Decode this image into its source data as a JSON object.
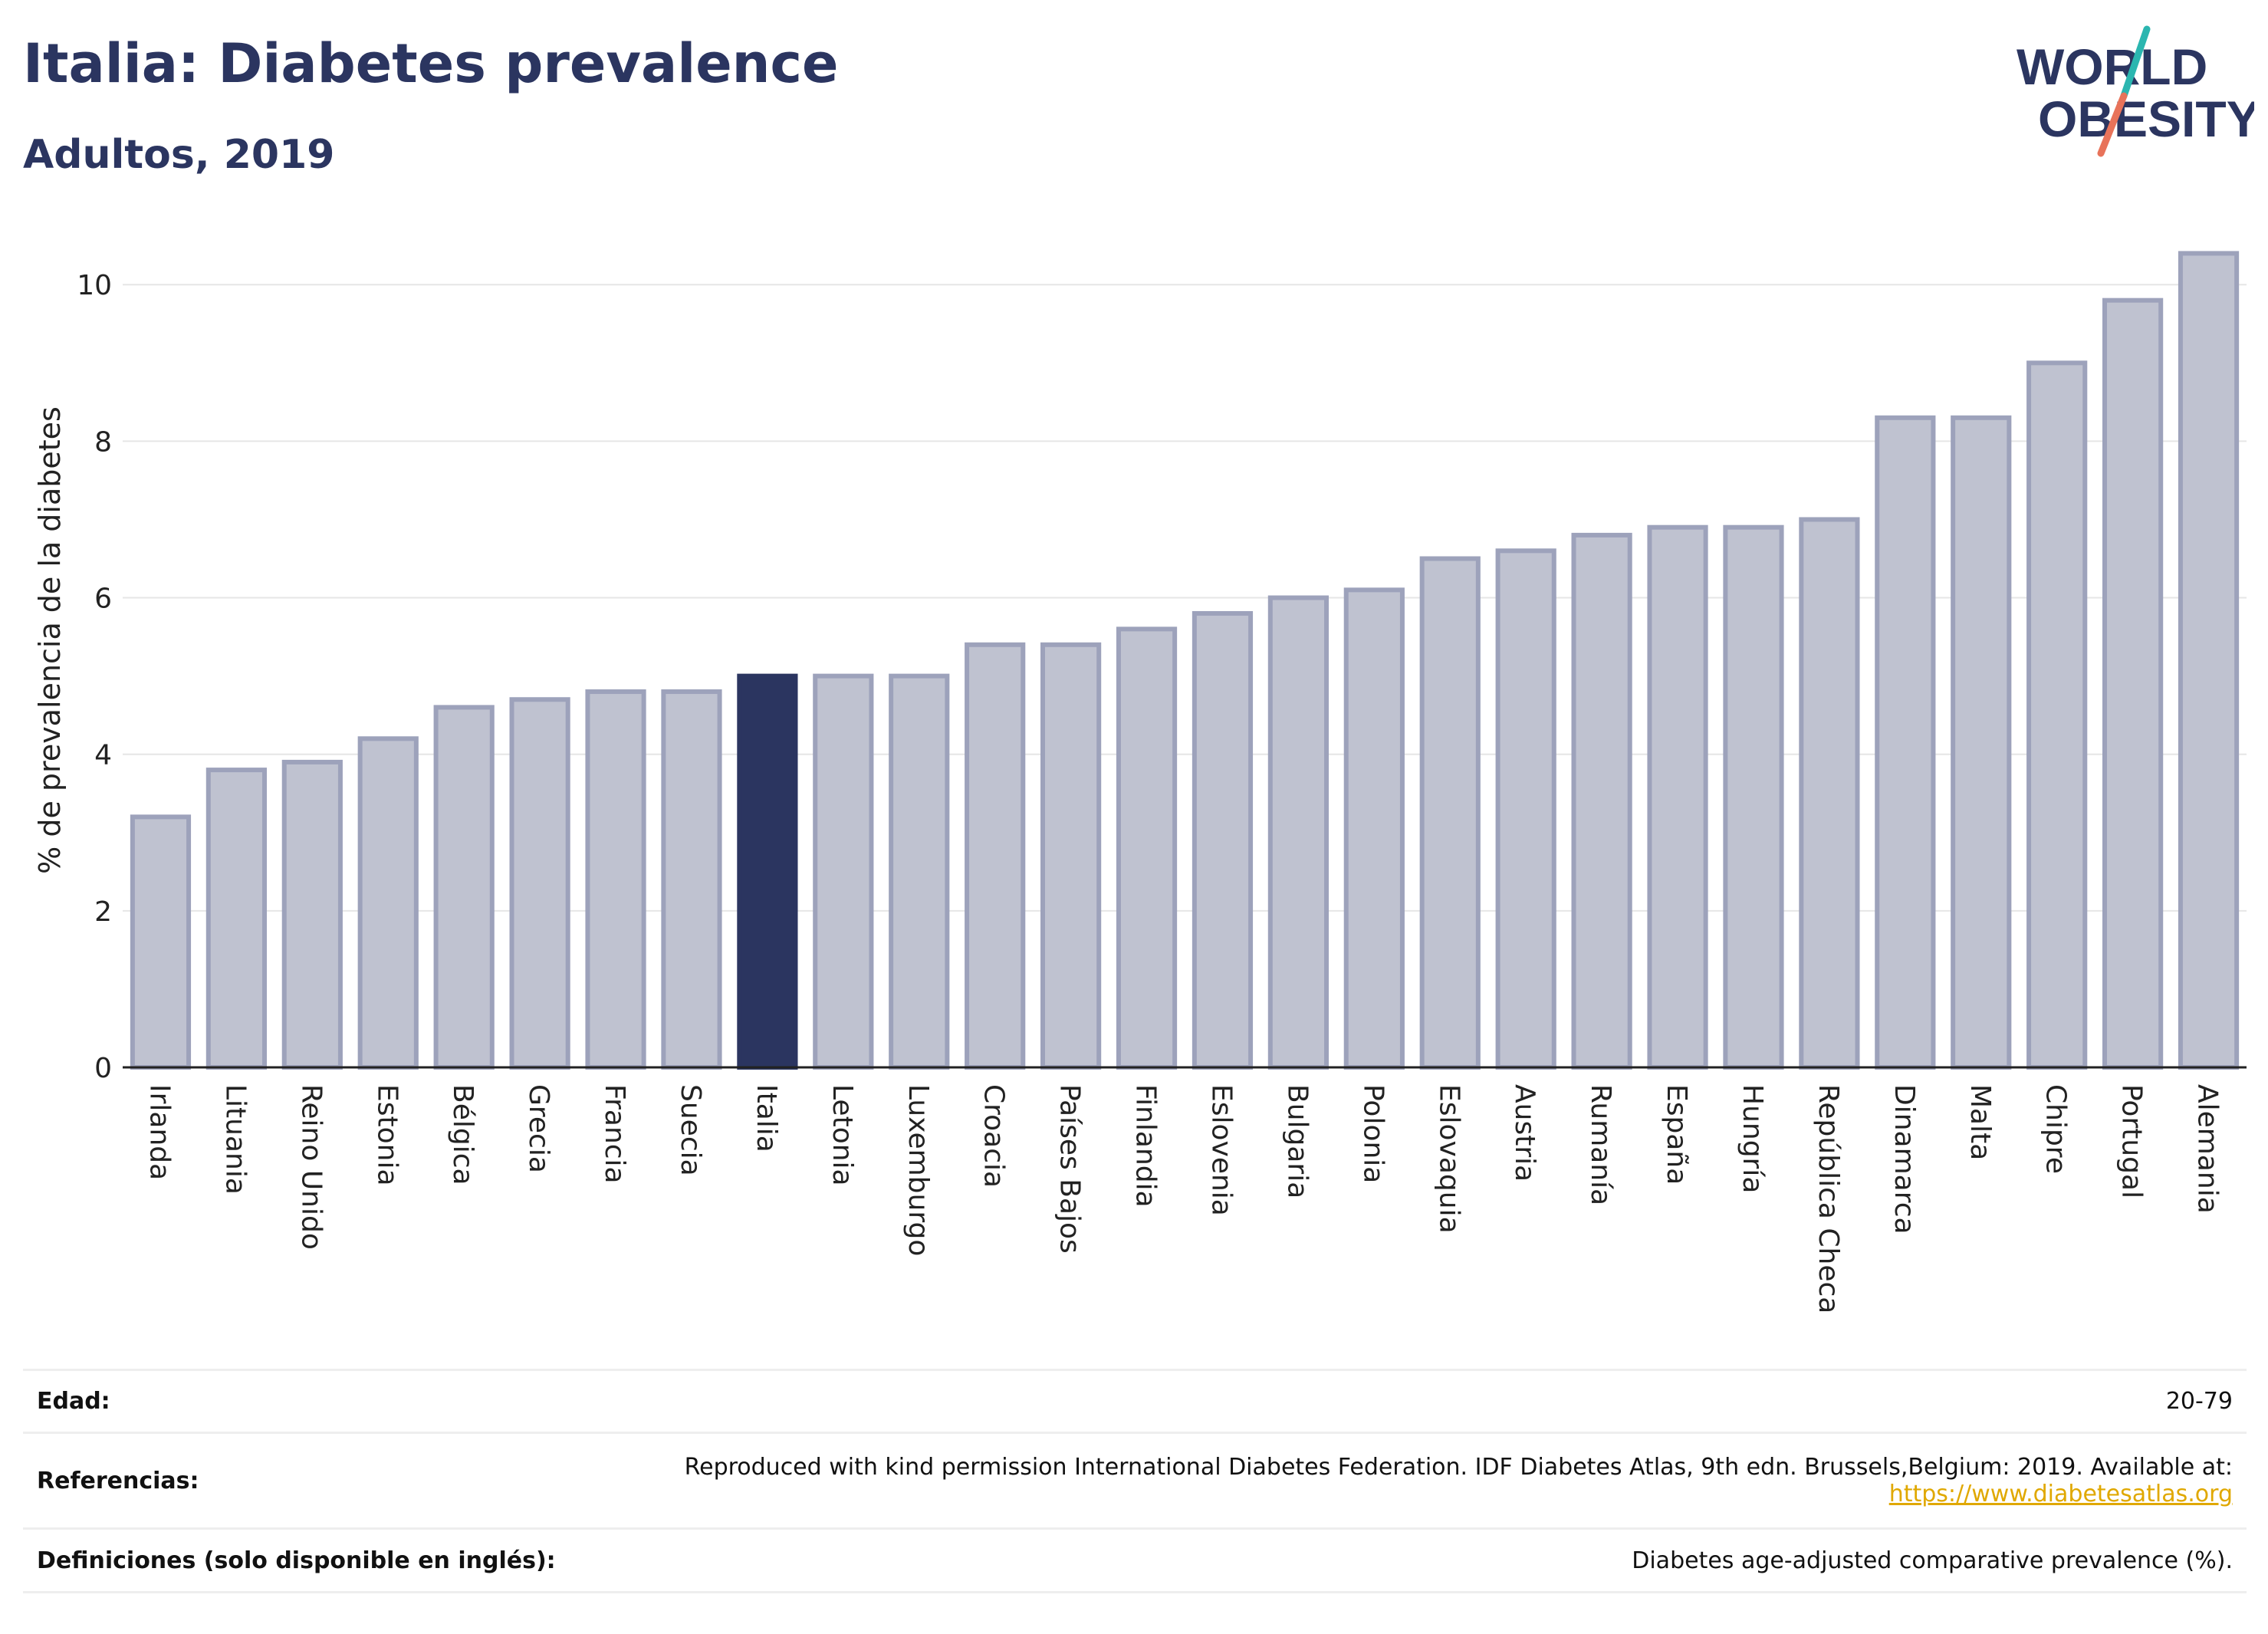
{
  "header": {
    "title": "Italia: Diabetes prevalence",
    "subtitle": "Adultos, 2019"
  },
  "logo": {
    "line1": "WORLD",
    "line2": "OBESITY"
  },
  "colors": {
    "bar": "#bfc2d0",
    "bar_border": "#9da2bb",
    "highlight": "#2b3560",
    "grid": "#e6e6e6"
  },
  "chart_data": {
    "type": "bar",
    "ylabel": "% de prevalencia de la diabetes",
    "ylim": [
      0,
      10.6
    ],
    "yticks": [
      0,
      2,
      4,
      6,
      8,
      10
    ],
    "grid": true,
    "highlight": "Italia",
    "categories": [
      "Irlanda",
      "Lituania",
      "Reino Unido",
      "Estonia",
      "Bélgica",
      "Grecia",
      "Francia",
      "Suecia",
      "Italia",
      "Letonia",
      "Luxemburgo",
      "Croacia",
      "Países Bajos",
      "Finlandia",
      "Eslovenia",
      "Bulgaria",
      "Polonia",
      "Eslovaquia",
      "Austria",
      "Rumanía",
      "España",
      "Hungría",
      "República Checa",
      "Dinamarca",
      "Malta",
      "Chipre",
      "Portugal",
      "Alemania"
    ],
    "values": [
      3.2,
      3.8,
      3.9,
      4.2,
      4.6,
      4.7,
      4.8,
      4.8,
      5.0,
      5.0,
      5.0,
      5.4,
      5.4,
      5.6,
      5.8,
      6.0,
      6.1,
      6.5,
      6.6,
      6.8,
      6.9,
      6.9,
      7.0,
      8.3,
      8.3,
      9.0,
      9.8,
      10.4
    ]
  },
  "info": {
    "age_label": "Edad:",
    "age_value": "20-79",
    "ref_label": "Referencias:",
    "ref_text": "Reproduced with kind permission International Diabetes Federation. IDF Diabetes Atlas, 9th edn. Brussels,Belgium: 2019. Available at:",
    "ref_link": "https://www.diabetesatlas.org",
    "def_label": "Definiciones (solo disponible en inglés):",
    "def_value": "Diabetes age-adjusted comparative prevalence (%)."
  }
}
